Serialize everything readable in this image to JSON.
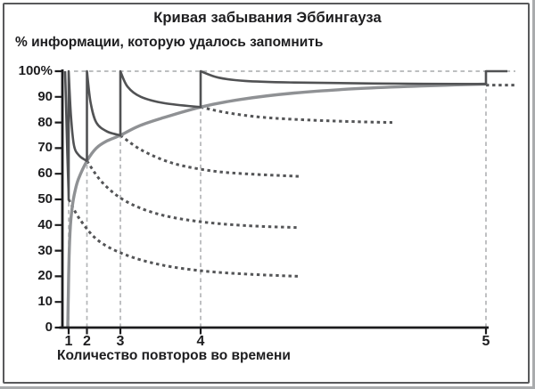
{
  "title": "Кривая забывания Эббингауза",
  "y_axis_caption": "% информации, которую удалось запомнить",
  "x_axis_caption": "Количество повторов во времени",
  "chart_data": {
    "type": "line",
    "title": "Кривая забывания Эббингауза",
    "ylabel": "% информации, которую удалось запомнить",
    "xlabel": "Количество повторов во времени",
    "ylim": [
      0,
      100
    ],
    "grid": "dashed guide lines at each repetition and at 100%",
    "legend": "none",
    "y_axis": {
      "ticks": [
        {
          "label": "100%",
          "value": 100
        },
        {
          "label": "90",
          "value": 90
        },
        {
          "label": "80",
          "value": 80
        },
        {
          "label": "70",
          "value": 70
        },
        {
          "label": "60",
          "value": 60
        },
        {
          "label": "50",
          "value": 50
        },
        {
          "label": "40",
          "value": 40
        },
        {
          "label": "30",
          "value": 30
        },
        {
          "label": "20",
          "value": 20
        },
        {
          "label": "10",
          "value": 10
        },
        {
          "label": "0",
          "value": 0
        }
      ]
    },
    "x_axis": {
      "note": "x in arbitrary time units (non-uniform spacing of repetitions)",
      "range": [
        0,
        500
      ],
      "ticks": [
        {
          "label": "1",
          "pos": 7
        },
        {
          "label": "2",
          "pos": 27.5
        },
        {
          "label": "3",
          "pos": 65
        },
        {
          "label": "4",
          "pos": 155
        },
        {
          "label": "5",
          "pos": 475
        }
      ]
    },
    "retention_at_repetitions_pct": [
      {
        "rep": 1,
        "pct": 50
      },
      {
        "rep": 2,
        "pct": 65
      },
      {
        "rep": 3,
        "pct": 75
      },
      {
        "rep": 4,
        "pct": 86
      },
      {
        "rep": 5,
        "pct": 95
      }
    ],
    "series": [
      {
        "name": "forgetting-curve-with-repetitions",
        "role": "main",
        "style": "solid dark gray, sawtooth: decays then jumps to 100% at each repetition",
        "segments": [
          [
            [
              3,
              100
            ],
            [
              4,
              88
            ],
            [
              5.5,
              68
            ],
            [
              6.8,
              54
            ],
            [
              7,
              50
            ]
          ],
          [
            [
              7,
              100
            ],
            [
              9.5,
              83
            ],
            [
              13,
              71
            ],
            [
              19,
              67
            ],
            [
              27.5,
              65
            ]
          ],
          [
            [
              27.5,
              100
            ],
            [
              31.5,
              88
            ],
            [
              38,
              80
            ],
            [
              50,
              76.5
            ],
            [
              65,
              75
            ]
          ],
          [
            [
              65,
              100
            ],
            [
              73,
              94
            ],
            [
              88,
              90
            ],
            [
              115,
              87.5
            ],
            [
              155,
              86
            ]
          ],
          [
            [
              155,
              100
            ],
            [
              175,
              97.5
            ],
            [
              205,
              96.2
            ],
            [
              260,
              95.6
            ],
            [
              350,
              95.2
            ],
            [
              475,
              95
            ]
          ],
          [
            [
              475,
              100
            ],
            [
              499,
              100
            ]
          ]
        ]
      },
      {
        "name": "memory-retention-envelope",
        "role": "envelope",
        "style": "smooth medium-gray rising curve through the repetition points",
        "segments": [
          [
            [
              6,
              0
            ],
            [
              6.6,
              12
            ],
            [
              7.5,
              28
            ],
            [
              9,
              40
            ],
            [
              11,
              47
            ],
            [
              14,
              53
            ],
            [
              18,
              58
            ],
            [
              27.5,
              65
            ],
            [
              38,
              70
            ],
            [
              50,
              72.8
            ],
            [
              65,
              75
            ],
            [
              85,
              78.5
            ],
            [
              110,
              81.5
            ],
            [
              155,
              86
            ],
            [
              200,
              89
            ],
            [
              260,
              91.5
            ],
            [
              330,
              93.2
            ],
            [
              400,
              94.2
            ],
            [
              475,
              95
            ]
          ]
        ]
      },
      {
        "name": "projection-after-repetition-1",
        "role": "projection",
        "style": "dark dashed decay if no further repetition",
        "segments": [
          [
            [
              7,
              50
            ],
            [
              20,
              42
            ],
            [
              40,
              34
            ],
            [
              70,
              28.5
            ],
            [
              110,
              24.5
            ],
            [
              160,
              22
            ],
            [
              210,
              20.8
            ],
            [
              265,
              20
            ]
          ]
        ]
      },
      {
        "name": "projection-after-repetition-2",
        "role": "projection",
        "style": "dark dashed decay if no further repetition",
        "segments": [
          [
            [
              27.5,
              65
            ],
            [
              45,
              56.5
            ],
            [
              70,
              49.5
            ],
            [
              105,
              44.5
            ],
            [
              150,
              41.5
            ],
            [
              205,
              39.8
            ],
            [
              265,
              39
            ]
          ]
        ]
      },
      {
        "name": "projection-after-repetition-3",
        "role": "projection",
        "style": "dark dashed decay if no further repetition",
        "segments": [
          [
            [
              65,
              75
            ],
            [
              90,
              69
            ],
            [
              125,
              64
            ],
            [
              170,
              61
            ],
            [
              215,
              59.8
            ],
            [
              265,
              59
            ]
          ]
        ]
      },
      {
        "name": "projection-after-repetition-4",
        "role": "projection",
        "style": "dark dashed decay if no further repetition",
        "segments": [
          [
            [
              155,
              86
            ],
            [
              185,
              83.8
            ],
            [
              225,
              82
            ],
            [
              280,
              80.9
            ],
            [
              330,
              80.3
            ],
            [
              370,
              80
            ]
          ]
        ]
      },
      {
        "name": "projection-after-repetition-5",
        "role": "projection",
        "style": "dark dashed decay if no further repetition",
        "segments": [
          [
            [
              475,
              94.6
            ],
            [
              508,
              94.6
            ]
          ]
        ]
      }
    ],
    "guides": {
      "vertical_dashed": [
        {
          "x": 7,
          "y_top": 50
        },
        {
          "x": 27.5,
          "y_top": 65
        },
        {
          "x": 65,
          "y_top": 75
        },
        {
          "x": 155,
          "y_top": 86
        },
        {
          "x": 475,
          "y_top": 98.5
        }
      ],
      "horizontal_dashed": [
        {
          "y": 100,
          "x_from": 13,
          "x_to": 508
        }
      ]
    }
  }
}
